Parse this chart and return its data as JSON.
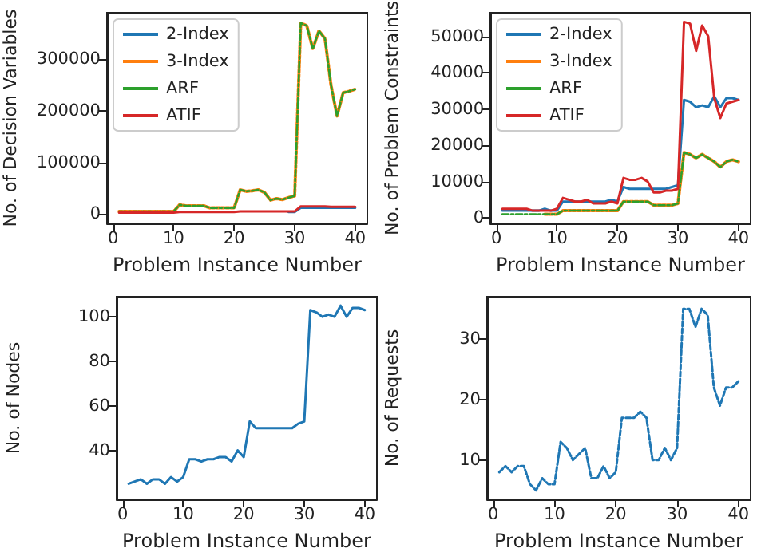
{
  "chart_data": [
    {
      "type": "line",
      "xlabel": "Problem Instance Number",
      "ylabel": "No. of Decision Variables",
      "x": [
        1,
        2,
        3,
        4,
        5,
        6,
        7,
        8,
        9,
        10,
        11,
        12,
        13,
        14,
        15,
        16,
        17,
        18,
        19,
        20,
        21,
        22,
        23,
        24,
        25,
        26,
        27,
        28,
        29,
        30,
        31,
        32,
        33,
        34,
        35,
        36,
        37,
        38,
        39,
        40
      ],
      "xlim": [
        -1,
        42
      ],
      "xticks": [
        0,
        10,
        20,
        30,
        40
      ],
      "ylim": [
        -18000,
        390000
      ],
      "yticks": [
        0,
        100000,
        200000,
        300000
      ],
      "grid": false,
      "legend": "top left",
      "series": [
        {
          "name": "2-Index",
          "color": "#1f77b4",
          "line_style": "solid",
          "values": [
            null,
            null,
            null,
            null,
            null,
            null,
            null,
            null,
            null,
            null,
            null,
            null,
            null,
            null,
            null,
            null,
            null,
            null,
            null,
            null,
            null,
            null,
            null,
            null,
            null,
            null,
            null,
            null,
            4000,
            4000,
            12000,
            12000,
            12000,
            12000,
            12000,
            12000,
            12000,
            12000,
            12000,
            12000
          ]
        },
        {
          "name": "3-Index",
          "color": "#ff7f0e",
          "line_style": "dashed",
          "values": [
            5000,
            5000,
            5000,
            5000,
            5000,
            5000,
            5000,
            5000,
            5000,
            5000,
            18000,
            16000,
            16000,
            16000,
            16000,
            12000,
            12000,
            12000,
            12000,
            12000,
            47000,
            44000,
            45000,
            47000,
            42000,
            27000,
            30000,
            28000,
            32000,
            35000,
            370000,
            365000,
            320000,
            355000,
            340000,
            250000,
            190000,
            235000,
            238000,
            242000
          ]
        },
        {
          "name": "ARF",
          "color": "#2ca02c",
          "line_style": "dashed",
          "values": [
            5000,
            5000,
            5000,
            5000,
            5000,
            5000,
            5000,
            5000,
            5000,
            5000,
            18000,
            16000,
            16000,
            16000,
            16000,
            12000,
            12000,
            12000,
            12000,
            12000,
            47000,
            44000,
            45000,
            47000,
            42000,
            27000,
            30000,
            28000,
            32000,
            35000,
            370000,
            365000,
            320000,
            355000,
            340000,
            250000,
            190000,
            235000,
            238000,
            242000
          ]
        },
        {
          "name": "ATIF",
          "color": "#d62728",
          "line_style": "solid",
          "values": [
            3000,
            3000,
            3000,
            3000,
            3000,
            3000,
            3000,
            3000,
            3000,
            3000,
            4000,
            4000,
            4000,
            4000,
            4000,
            4000,
            4000,
            4000,
            4000,
            4000,
            5000,
            5000,
            5000,
            5000,
            5000,
            5000,
            5000,
            5000,
            5000,
            5000,
            15000,
            15000,
            15000,
            15000,
            15000,
            14000,
            14000,
            14000,
            14000,
            14000
          ]
        }
      ]
    },
    {
      "type": "line",
      "xlabel": "Problem Instance Number",
      "ylabel": "No. of Problem Constraints",
      "x": [
        1,
        2,
        3,
        4,
        5,
        6,
        7,
        8,
        9,
        10,
        11,
        12,
        13,
        14,
        15,
        16,
        17,
        18,
        19,
        20,
        21,
        22,
        23,
        24,
        25,
        26,
        27,
        28,
        29,
        30,
        31,
        32,
        33,
        34,
        35,
        36,
        37,
        38,
        39,
        40
      ],
      "xlim": [
        -1,
        42
      ],
      "xticks": [
        0,
        10,
        20,
        30,
        40
      ],
      "ylim": [
        -1500,
        56500
      ],
      "yticks": [
        0,
        10000,
        20000,
        30000,
        40000,
        50000
      ],
      "grid": false,
      "legend": "top left",
      "series": [
        {
          "name": "2-Index",
          "color": "#1f77b4",
          "line_style": "solid",
          "values": [
            2000,
            2000,
            2000,
            2000,
            2000,
            2000,
            2000,
            2500,
            2000,
            2000,
            4500,
            4500,
            4500,
            4500,
            4500,
            4500,
            4500,
            4500,
            5000,
            4500,
            8500,
            8000,
            8000,
            8000,
            8000,
            8000,
            8000,
            8000,
            8500,
            9000,
            32500,
            32000,
            30500,
            31000,
            30500,
            33500,
            30500,
            33000,
            33000,
            32500
          ]
        },
        {
          "name": "3-Index",
          "color": "#ff7f0e",
          "line_style": "dashed",
          "values": [
            null,
            null,
            null,
            null,
            null,
            null,
            null,
            1000,
            1000,
            1000,
            2000,
            2000,
            2000,
            2000,
            2000,
            2000,
            2000,
            2000,
            2000,
            2000,
            4500,
            4500,
            4500,
            4500,
            4500,
            3500,
            3500,
            3500,
            3500,
            4000,
            18000,
            17500,
            16500,
            17500,
            16500,
            15500,
            14000,
            15500,
            16000,
            15500
          ]
        },
        {
          "name": "ARF",
          "color": "#2ca02c",
          "line_style": "dashed",
          "values": [
            1000,
            1000,
            1000,
            1000,
            1000,
            1000,
            1000,
            1000,
            1000,
            1000,
            2000,
            2000,
            2000,
            2000,
            2000,
            2000,
            2000,
            2000,
            2000,
            2000,
            4500,
            4500,
            4500,
            4500,
            4500,
            3500,
            3500,
            3500,
            3500,
            4000,
            18000,
            17500,
            16500,
            17500,
            16500,
            15500,
            14000,
            15500,
            16000,
            15500
          ]
        },
        {
          "name": "ATIF",
          "color": "#d62728",
          "line_style": "solid",
          "values": [
            2500,
            2500,
            2500,
            2500,
            2500,
            2000,
            2000,
            2000,
            2000,
            2500,
            5500,
            5000,
            4500,
            4500,
            5000,
            4000,
            4000,
            4000,
            4500,
            4000,
            11000,
            10500,
            10500,
            11000,
            10000,
            7000,
            7000,
            7500,
            7500,
            8000,
            54000,
            53500,
            46000,
            53000,
            50000,
            33000,
            27500,
            31500,
            32000,
            32500
          ]
        }
      ]
    },
    {
      "type": "line",
      "xlabel": "Problem Instance Number",
      "ylabel": "No. of Nodes",
      "x": [
        1,
        2,
        3,
        4,
        5,
        6,
        7,
        8,
        9,
        10,
        11,
        12,
        13,
        14,
        15,
        16,
        17,
        18,
        19,
        20,
        21,
        22,
        23,
        24,
        25,
        26,
        27,
        28,
        29,
        30,
        31,
        32,
        33,
        34,
        35,
        36,
        37,
        38,
        39,
        40
      ],
      "xlim": [
        -1,
        42
      ],
      "xticks": [
        0,
        10,
        20,
        30,
        40
      ],
      "ylim": [
        18,
        109
      ],
      "yticks": [
        40,
        60,
        80,
        100
      ],
      "grid": false,
      "color": "#1f77b4",
      "line_style": "solid",
      "values": [
        25,
        26,
        27,
        25,
        27,
        27,
        25,
        28,
        26,
        28,
        36,
        36,
        35,
        36,
        36,
        37,
        37,
        35,
        40,
        37,
        53,
        50,
        50,
        50,
        50,
        50,
        50,
        50,
        52,
        53,
        103,
        102,
        100,
        101,
        100,
        105,
        100,
        104,
        104,
        103
      ]
    },
    {
      "type": "line",
      "xlabel": "Problem Instance Number",
      "ylabel": "No. of Requests",
      "x": [
        1,
        2,
        3,
        4,
        5,
        6,
        7,
        8,
        9,
        10,
        11,
        12,
        13,
        14,
        15,
        16,
        17,
        18,
        19,
        20,
        21,
        22,
        23,
        24,
        25,
        26,
        27,
        28,
        29,
        30,
        31,
        32,
        33,
        34,
        35,
        36,
        37,
        38,
        39,
        40
      ],
      "xlim": [
        -1,
        42
      ],
      "xticks": [
        0,
        10,
        20,
        30,
        40
      ],
      "ylim": [
        3.5,
        37
      ],
      "yticks": [
        10,
        20,
        30
      ],
      "grid": false,
      "color": "#1f77b4",
      "line_style": "dashed",
      "values": [
        8,
        9,
        8,
        9,
        9,
        6,
        5,
        7,
        6,
        6,
        13,
        12,
        10,
        11,
        12,
        7,
        7,
        9,
        7,
        8,
        17,
        17,
        17,
        18,
        17,
        10,
        10,
        12,
        10,
        12,
        35,
        35,
        32,
        35,
        34,
        22,
        19,
        22,
        22,
        23
      ]
    }
  ]
}
